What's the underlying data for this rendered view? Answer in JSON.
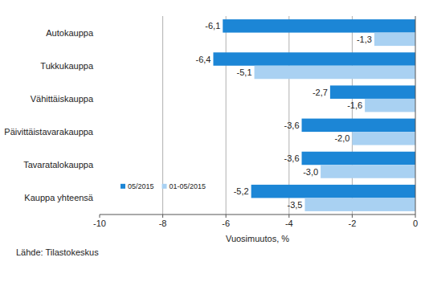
{
  "chart_data": {
    "type": "bar",
    "orientation": "horizontal",
    "categories": [
      "Autokauppa",
      "Tukkukauppa",
      "Vähittäiskauppa",
      "Päivittäistavarakauppa",
      "Tavaratalokauppa",
      "Kauppa yhteensä"
    ],
    "series": [
      {
        "name": "05/2015",
        "color": "#1c86d6",
        "values": [
          -6.1,
          -6.4,
          -2.7,
          -3.6,
          -3.6,
          -5.2
        ],
        "value_labels": [
          "-6,1",
          "-6,4",
          "-2,7",
          "-3,6",
          "-3,6",
          "-5,2"
        ]
      },
      {
        "name": "01-05/2015",
        "color": "#a9d1f2",
        "values": [
          -1.3,
          -5.1,
          -1.6,
          -2.0,
          -3.0,
          -3.5
        ],
        "value_labels": [
          "-1,3",
          "-5,1",
          "-1,6",
          "-2,0",
          "-3,0",
          "-3,5"
        ]
      }
    ],
    "x_label": "Vuosimuutos, %",
    "xlim": [
      -10,
      0
    ],
    "xticks": [
      -10,
      -8,
      -6,
      -4,
      -2,
      0
    ],
    "grid": true,
    "legend": "lower left",
    "data_labels": true,
    "annotations": [
      "Lähde: Tilastokeskus"
    ]
  }
}
